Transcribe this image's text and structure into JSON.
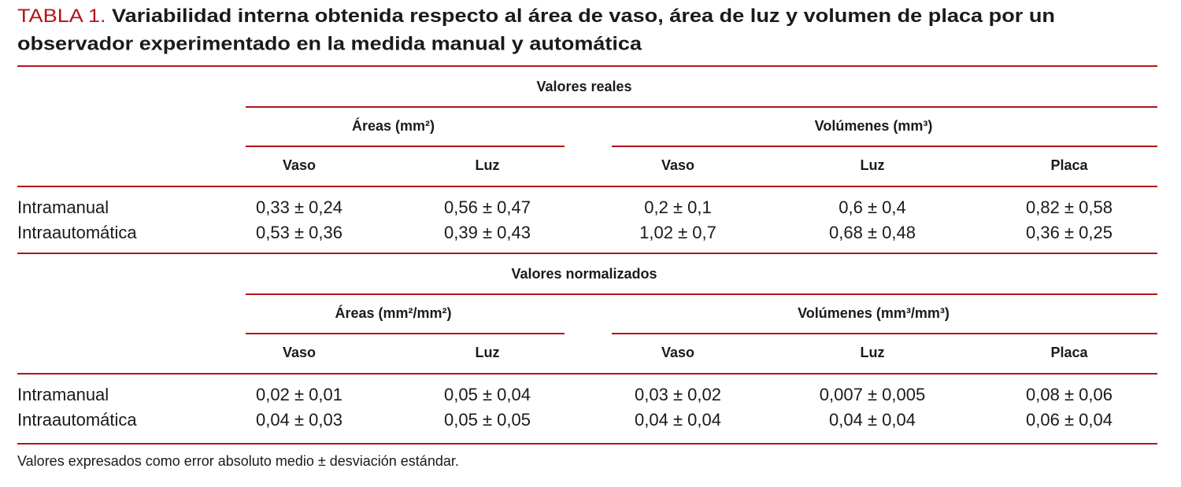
{
  "title": {
    "label": "TABLA 1.",
    "lines": [
      "Variabilidad interna obtenida respecto al área de vaso, área de luz y volumen de placa por un",
      "observador experimentado en la medida manual y automática"
    ]
  },
  "sections": [
    {
      "heading": "Valores reales",
      "groups": [
        "Áreas (mm²)",
        "Volúmenes (mm³)"
      ],
      "columns": [
        "Vaso",
        "Luz",
        "Vaso",
        "Luz",
        "Placa"
      ],
      "rows": [
        {
          "label": "Intramanual",
          "cells": [
            "0,33 ± 0,24",
            "0,56 ± 0,47",
            "0,2 ± 0,1",
            "0,6 ± 0,4",
            "0,82 ± 0,58"
          ]
        },
        {
          "label": "Intraautomática",
          "cells": [
            "0,53 ± 0,36",
            "0,39 ± 0,43",
            "1,02 ± 0,7",
            "0,68 ± 0,48",
            "0,36 ± 0,25"
          ]
        }
      ]
    },
    {
      "heading": "Valores normalizados",
      "groups": [
        "Áreas (mm²/mm²)",
        "Volúmenes (mm³/mm³)"
      ],
      "columns": [
        "Vaso",
        "Luz",
        "Vaso",
        "Luz",
        "Placa"
      ],
      "rows": [
        {
          "label": "Intramanual",
          "cells": [
            "0,02 ± 0,01",
            "0,05 ± 0,04",
            "0,03 ± 0,02",
            "0,007 ± 0,005",
            "0,08 ± 0,06"
          ]
        },
        {
          "label": "Intraautomática",
          "cells": [
            "0,04 ± 0,03",
            "0,05 ± 0,05",
            "0,04 ± 0,04",
            "0,04 ± 0,04",
            "0,06 ± 0,04"
          ]
        }
      ]
    }
  ],
  "footnote": "Valores expresados como error absoluto medio ± desviación estándar."
}
